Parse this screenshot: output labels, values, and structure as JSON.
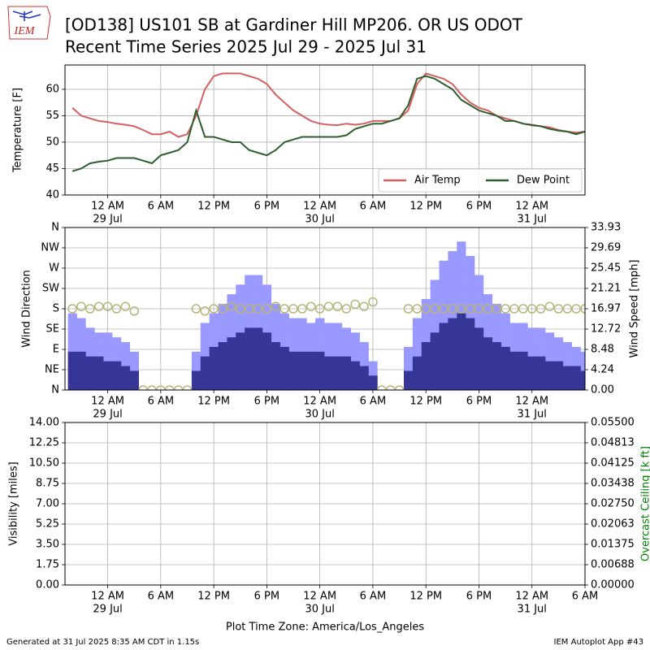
{
  "header": {
    "logo": "IEM",
    "title": [
      "[OD138] US101 SB at Gardiner Hill MP206. OR US ODOT",
      "Recent Time Series 2025 Jul 29 - 2025 Jul 31"
    ]
  },
  "footer": {
    "left": "Generated at 31 Jul 2025 8:35 AM CDT in 1.15s",
    "right": "IEM Autoplot App #43"
  },
  "chart_data": [
    {
      "type": "line",
      "ylabel": "Temperature [F]",
      "grid": true,
      "legend": "lower right",
      "xlim": [
        "Jul 28 19:10",
        "Jul 31 06:00"
      ],
      "xticks": [
        {
          "value": "Jul 29 00:00",
          "label": "12 AM",
          "date": "29 Jul"
        },
        {
          "value": "Jul 29 06:00",
          "label": "6 AM"
        },
        {
          "value": "Jul 29 12:00",
          "label": "12 PM"
        },
        {
          "value": "Jul 29 18:00",
          "label": "6 PM"
        },
        {
          "value": "Jul 30 00:00",
          "label": "12 AM",
          "date": "30 Jul"
        },
        {
          "value": "Jul 30 06:00",
          "label": "6 AM"
        },
        {
          "value": "Jul 30 12:00",
          "label": "12 PM"
        },
        {
          "value": "Jul 30 18:00",
          "label": "6 PM"
        },
        {
          "value": "Jul 31 00:00",
          "label": "12 AM",
          "date": "31 Jul"
        }
      ],
      "ylim": [
        40,
        64.6
      ],
      "yticks": [
        40,
        45,
        50,
        55,
        60
      ],
      "x": [
        "Jul 28 20:00",
        "Jul 28 21:00",
        "Jul 28 22:00",
        "Jul 28 23:00",
        "Jul 29 00:00",
        "Jul 29 01:00",
        "Jul 29 02:00",
        "Jul 29 03:00",
        "Jul 29 04:00",
        "Jul 29 05:00",
        "Jul 29 06:00",
        "Jul 29 07:00",
        "Jul 29 08:00",
        "Jul 29 09:00",
        "Jul 29 10:00",
        "Jul 29 11:00",
        "Jul 29 12:00",
        "Jul 29 13:00",
        "Jul 29 14:00",
        "Jul 29 15:00",
        "Jul 29 16:00",
        "Jul 29 17:00",
        "Jul 29 18:00",
        "Jul 29 19:00",
        "Jul 29 20:00",
        "Jul 29 21:00",
        "Jul 29 22:00",
        "Jul 29 23:00",
        "Jul 30 00:00",
        "Jul 30 01:00",
        "Jul 30 02:00",
        "Jul 30 03:00",
        "Jul 30 04:00",
        "Jul 30 05:00",
        "Jul 30 06:00",
        "Jul 30 07:00",
        "Jul 30 08:00",
        "Jul 30 09:00",
        "Jul 30 10:00",
        "Jul 30 11:00",
        "Jul 30 12:00",
        "Jul 30 13:00",
        "Jul 30 14:00",
        "Jul 30 15:00",
        "Jul 30 16:00",
        "Jul 30 17:00",
        "Jul 30 18:00",
        "Jul 30 19:00",
        "Jul 30 20:00",
        "Jul 30 21:00",
        "Jul 30 22:00",
        "Jul 30 23:00",
        "Jul 31 00:00",
        "Jul 31 01:00",
        "Jul 31 02:00",
        "Jul 31 03:00",
        "Jul 31 04:00",
        "Jul 31 05:00",
        "Jul 31 06:00"
      ],
      "series": [
        {
          "name": "Air Temp",
          "color": "#d65f5f",
          "values": [
            56.5,
            55,
            54.5,
            54,
            53.8,
            53.5,
            53.3,
            53,
            52.3,
            51.5,
            51.5,
            52,
            51,
            51.5,
            55,
            60,
            62.5,
            63,
            63,
            63,
            62.5,
            62,
            61,
            59,
            57.5,
            56,
            55,
            54,
            53.5,
            53.3,
            53.2,
            53.5,
            53.3,
            53.5,
            54,
            54,
            54,
            54.5,
            56,
            61,
            63,
            62.5,
            62,
            61,
            59,
            57.5,
            56.5,
            56,
            55,
            54.5,
            54,
            53.5,
            53.3,
            53,
            52.8,
            52.3,
            52,
            51.8,
            52
          ]
        },
        {
          "name": "Dew Point",
          "color": "#2e5e2e",
          "values": [
            44.5,
            45,
            46,
            46.3,
            46.5,
            47,
            47,
            47,
            46.5,
            46,
            47.5,
            48,
            48.5,
            50,
            56,
            51,
            51,
            50.5,
            50,
            50,
            48.5,
            48,
            47.5,
            48.5,
            50,
            50.5,
            51,
            51,
            51,
            51,
            51,
            51.3,
            52.5,
            53,
            53.5,
            53.5,
            54,
            54.5,
            57,
            62,
            62.5,
            62,
            61,
            60,
            58,
            57,
            56,
            55.5,
            55,
            54,
            54,
            53.5,
            53.2,
            53,
            52.5,
            52.2,
            52,
            51.5,
            52
          ]
        }
      ]
    },
    {
      "type": "bar",
      "ylabel": "Wind Direction",
      "y2label": "Wind Speed [mph]",
      "grid": true,
      "xlim": [
        "Jul 28 19:10",
        "Jul 31 06:00"
      ],
      "xticks": [
        {
          "value": "Jul 29 00:00",
          "label": "12 AM",
          "date": "29 Jul"
        },
        {
          "value": "Jul 29 06:00",
          "label": "6 AM"
        },
        {
          "value": "Jul 29 12:00",
          "label": "12 PM"
        },
        {
          "value": "Jul 29 18:00",
          "label": "6 PM"
        },
        {
          "value": "Jul 30 00:00",
          "label": "12 AM",
          "date": "30 Jul"
        },
        {
          "value": "Jul 30 06:00",
          "label": "6 AM"
        },
        {
          "value": "Jul 30 12:00",
          "label": "12 PM"
        },
        {
          "value": "Jul 30 18:00",
          "label": "6 PM"
        },
        {
          "value": "Jul 31 00:00",
          "label": "12 AM",
          "date": "31 Jul"
        }
      ],
      "ylim": [
        0,
        360
      ],
      "yticks": [
        {
          "value": 0,
          "label": "N"
        },
        {
          "value": 45,
          "label": "NE"
        },
        {
          "value": 90,
          "label": "E"
        },
        {
          "value": 135,
          "label": "SE"
        },
        {
          "value": 180,
          "label": "S"
        },
        {
          "value": 225,
          "label": "SW"
        },
        {
          "value": 270,
          "label": "W"
        },
        {
          "value": 315,
          "label": "NW"
        },
        {
          "value": 360,
          "label": "N"
        }
      ],
      "y2lim": [
        0,
        33.93
      ],
      "y2ticks": [
        {
          "value": 0,
          "label": "0.00"
        },
        4.24,
        8.48,
        12.72,
        16.97,
        21.21,
        25.45,
        29.69,
        33.93
      ],
      "x": [
        "Jul 28 20:00",
        "Jul 28 21:00",
        "Jul 28 22:00",
        "Jul 28 23:00",
        "Jul 29 00:00",
        "Jul 29 01:00",
        "Jul 29 02:00",
        "Jul 29 03:00",
        "Jul 29 04:00",
        "Jul 29 05:00",
        "Jul 29 06:00",
        "Jul 29 07:00",
        "Jul 29 08:00",
        "Jul 29 09:00",
        "Jul 29 10:00",
        "Jul 29 11:00",
        "Jul 29 12:00",
        "Jul 29 13:00",
        "Jul 29 14:00",
        "Jul 29 15:00",
        "Jul 29 16:00",
        "Jul 29 17:00",
        "Jul 29 18:00",
        "Jul 29 19:00",
        "Jul 29 20:00",
        "Jul 29 21:00",
        "Jul 29 22:00",
        "Jul 29 23:00",
        "Jul 30 00:00",
        "Jul 30 01:00",
        "Jul 30 02:00",
        "Jul 30 03:00",
        "Jul 30 04:00",
        "Jul 30 05:00",
        "Jul 30 06:00",
        "Jul 30 07:00",
        "Jul 30 08:00",
        "Jul 30 09:00",
        "Jul 30 10:00",
        "Jul 30 11:00",
        "Jul 30 12:00",
        "Jul 30 13:00",
        "Jul 30 14:00",
        "Jul 30 15:00",
        "Jul 30 16:00",
        "Jul 30 17:00",
        "Jul 30 18:00",
        "Jul 30 19:00",
        "Jul 30 20:00",
        "Jul 30 21:00",
        "Jul 30 22:00",
        "Jul 30 23:00",
        "Jul 31 00:00",
        "Jul 31 01:00",
        "Jul 31 02:00",
        "Jul 31 03:00",
        "Jul 31 04:00",
        "Jul 31 05:00",
        "Jul 31 06:00"
      ],
      "series": [
        {
          "type": "bar",
          "axis": "y2",
          "color": "#9999ff",
          "values": [
            16,
            15,
            13,
            12,
            12,
            11,
            10,
            8,
            0,
            0,
            0,
            0,
            0,
            0,
            8,
            14,
            16,
            18,
            20,
            22,
            24,
            24,
            22,
            18,
            16,
            15,
            15,
            14,
            15,
            14,
            14,
            13,
            12,
            10,
            6,
            0,
            0,
            0,
            9,
            15,
            19,
            23,
            27,
            29,
            31,
            28,
            24,
            20,
            18,
            16,
            14,
            14,
            13,
            13,
            12,
            11,
            10,
            9,
            8
          ]
        },
        {
          "type": "bar",
          "axis": "y2",
          "color": "#363696",
          "values": [
            8,
            8,
            7,
            7,
            6,
            6,
            5,
            4,
            0,
            0,
            0,
            0,
            0,
            0,
            4,
            7,
            9,
            10,
            11,
            12,
            13,
            13,
            12,
            10,
            9,
            8,
            8,
            8,
            8,
            7,
            7,
            7,
            6,
            5,
            3,
            0,
            0,
            0,
            4,
            7,
            10,
            12,
            14,
            15,
            16,
            15,
            13,
            11,
            10,
            9,
            8,
            8,
            7,
            7,
            6,
            6,
            5,
            5,
            4
          ]
        },
        {
          "type": "scatter",
          "color": "#b5b57a",
          "values": [
            180,
            185,
            180,
            185,
            185,
            180,
            185,
            175,
            0,
            0,
            0,
            0,
            0,
            0,
            180,
            175,
            180,
            180,
            185,
            180,
            180,
            180,
            180,
            185,
            180,
            180,
            180,
            185,
            180,
            185,
            185,
            180,
            190,
            185,
            195,
            0,
            0,
            0,
            180,
            180,
            180,
            180,
            180,
            180,
            180,
            180,
            180,
            180,
            180,
            180,
            180,
            180,
            180,
            180,
            185,
            180,
            180,
            180,
            180
          ]
        }
      ]
    },
    {
      "type": "line",
      "ylabel": "Visibility [miles]",
      "y2label": "Overcast Ceiling [k ft]",
      "y2label_color": "#008000",
      "grid": true,
      "xlabel": "Plot Time Zone: America/Los_Angeles",
      "xlim": [
        "Jul 28 19:10",
        "Jul 31 06:00"
      ],
      "xticks": [
        {
          "value": "Jul 29 00:00",
          "label": "12 AM",
          "date": "29 Jul"
        },
        {
          "value": "Jul 29 06:00",
          "label": "6 AM"
        },
        {
          "value": "Jul 29 12:00",
          "label": "12 PM"
        },
        {
          "value": "Jul 29 18:00",
          "label": "6 PM"
        },
        {
          "value": "Jul 30 00:00",
          "label": "12 AM",
          "date": "30 Jul"
        },
        {
          "value": "Jul 30 06:00",
          "label": "6 AM"
        },
        {
          "value": "Jul 30 12:00",
          "label": "12 PM"
        },
        {
          "value": "Jul 30 18:00",
          "label": "6 PM"
        },
        {
          "value": "Jul 31 00:00",
          "label": "12 AM",
          "date": "31 Jul"
        },
        {
          "value": "Jul 31 06:00",
          "label": "6 AM"
        }
      ],
      "ylim": [
        0,
        14
      ],
      "yticks": [
        {
          "value": 0,
          "label": "0.00"
        },
        1.75,
        {
          "value": 3.5,
          "label": "3.50"
        },
        5.25,
        {
          "value": 7,
          "label": "7.00"
        },
        8.75,
        {
          "value": 10.5,
          "label": "10.50"
        },
        12.25,
        {
          "value": 14,
          "label": "14.00"
        }
      ],
      "y2lim": [
        0,
        0.055
      ],
      "y2ticks": [
        {
          "value": 0,
          "label": "0.00000"
        },
        0.00688,
        0.01375,
        0.02063,
        {
          "value": 0.0275,
          "label": "0.02750"
        },
        0.03438,
        0.04125,
        0.04813,
        {
          "value": 0.055,
          "label": "0.05500"
        }
      ],
      "x": [],
      "series": []
    }
  ]
}
